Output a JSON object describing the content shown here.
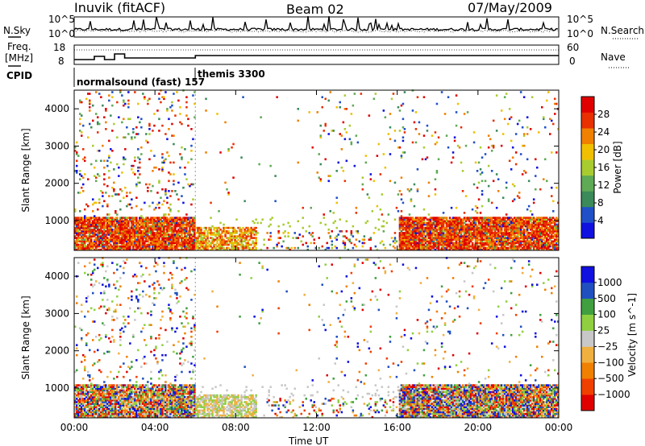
{
  "header": {
    "station": "Inuvik (fitACF)",
    "beam": "Beam 02",
    "date": "07/May/2009"
  },
  "strip_labels": {
    "nsky": "N.Sky",
    "nsky_ticks": [
      "10^5",
      "10^0"
    ],
    "nsearch": "N.Search",
    "nsearch_ticks": [
      "10^5",
      "10^0"
    ],
    "freq": "Freq.",
    "freq_unit": "[MHz]",
    "freq_ticks": [
      "18",
      "8"
    ],
    "nave": "Nave",
    "nave_ticks": [
      "60",
      "0"
    ],
    "cpid": "CPID",
    "cpid_modes": [
      "normalsound (fast) 157",
      "themis 3300"
    ]
  },
  "colors": {
    "power": [
      "#1010e0",
      "#2050c8",
      "#3a8a5a",
      "#5faa55",
      "#a8cc30",
      "#f0c000",
      "#f08000",
      "#e83000",
      "#e00000"
    ],
    "velocity": [
      "#e00000",
      "#f04000",
      "#f08000",
      "#f0b040",
      "#c8c8c8",
      "#90d040",
      "#40a040",
      "#2050c0",
      "#1010e0"
    ]
  },
  "chart_data": [
    {
      "type": "heatmap",
      "title": "",
      "xlabel": "",
      "ylabel": "Slant Range [km]",
      "x_ticks": [
        "00:00",
        "04:00",
        "08:00",
        "12:00",
        "16:00",
        "20:00",
        "00:00"
      ],
      "y_ticks": [
        1000,
        2000,
        3000,
        4000
      ],
      "ylim": [
        200,
        4500
      ],
      "colorbar_label": "Power [dB]",
      "colorbar_ticks": [
        4,
        8,
        12,
        16,
        20,
        24,
        28
      ],
      "colorbar_range": [
        0,
        32
      ],
      "regions": [
        {
          "t": [
            0.0,
            6.0
          ],
          "r": [
            200,
            1100
          ],
          "level": "high"
        },
        {
          "t": [
            6.0,
            9.0
          ],
          "r": [
            200,
            800
          ],
          "level": "mid"
        },
        {
          "t": [
            9.5,
            16.0
          ],
          "r": [
            200,
            700
          ],
          "level": "low"
        },
        {
          "t": [
            16.0,
            24.0
          ],
          "r": [
            200,
            1100
          ],
          "level": "high"
        },
        {
          "t": [
            0.0,
            6.0
          ],
          "r": [
            1100,
            4400
          ],
          "level": "scattered"
        },
        {
          "t": [
            12.0,
            24.0
          ],
          "r": [
            1200,
            4500
          ],
          "level": "sparse"
        }
      ]
    },
    {
      "type": "heatmap",
      "title": "",
      "xlabel": "Time UT",
      "ylabel": "Slant Range [km]",
      "x_ticks": [
        "00:00",
        "04:00",
        "08:00",
        "12:00",
        "16:00",
        "20:00",
        "00:00"
      ],
      "y_ticks": [
        1000,
        2000,
        3000,
        4000
      ],
      "ylim": [
        200,
        4500
      ],
      "colorbar_label": "Velocity [m s^-1]",
      "colorbar_ticks": [
        1000,
        500,
        100,
        25,
        -25,
        -100,
        -500,
        -1000
      ],
      "colorbar_tick_labels": [
        "1000",
        "500",
        "100",
        "25",
        "−25",
        "−100",
        "−500",
        "−1000"
      ],
      "regions": [
        {
          "t": [
            0.0,
            6.0
          ],
          "r": [
            200,
            1100
          ],
          "level": "mixed-negative"
        },
        {
          "t": [
            6.0,
            9.0
          ],
          "r": [
            200,
            800
          ],
          "level": "near-zero"
        },
        {
          "t": [
            16.0,
            24.0
          ],
          "r": [
            200,
            1100
          ],
          "level": "mixed"
        },
        {
          "t": [
            0.0,
            24.0
          ],
          "r": [
            1100,
            4500
          ],
          "level": "scattered"
        }
      ]
    }
  ]
}
